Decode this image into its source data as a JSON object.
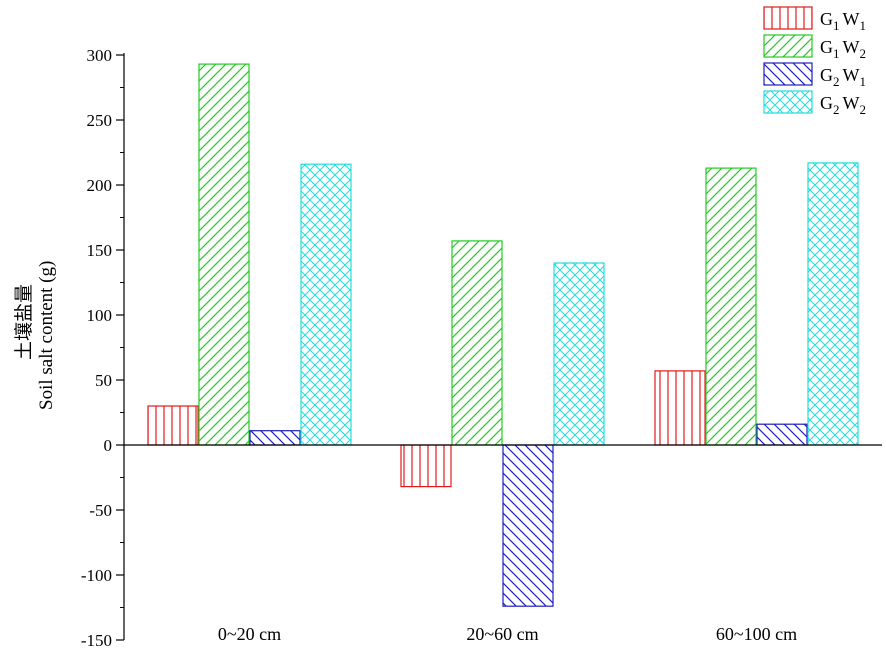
{
  "chart_data": {
    "type": "bar",
    "categories": [
      "0~20 cm",
      "20~60 cm",
      "60~100 cm"
    ],
    "series": [
      {
        "name": "G1W1",
        "name_parts": {
          "g": "G",
          "g_sub": "1",
          "w": "W",
          "w_sub": "1"
        },
        "values": [
          30,
          -32,
          57
        ],
        "color": "#e31a1c",
        "pattern": "vertical-lines"
      },
      {
        "name": "G1W2",
        "name_parts": {
          "g": "G",
          "g_sub": "1",
          "w": "W",
          "w_sub": "2"
        },
        "values": [
          293,
          157,
          213
        ],
        "color": "#22cc22",
        "pattern": "diagonal-up"
      },
      {
        "name": "G2W1",
        "name_parts": {
          "g": "G",
          "g_sub": "2",
          "w": "W",
          "w_sub": "1"
        },
        "values": [
          11,
          -124,
          16
        ],
        "color": "#1f1fbf",
        "pattern": "diagonal-down"
      },
      {
        "name": "G2W2",
        "name_parts": {
          "g": "G",
          "g_sub": "2",
          "w": "W",
          "w_sub": "2"
        },
        "values": [
          216,
          140,
          217
        ],
        "color": "#22dddd",
        "pattern": "crosshatch"
      }
    ],
    "ylabel_cn": "土壤盐量",
    "ylabel": "Soil salt content (g)",
    "xlabel": "",
    "ylim": [
      -150,
      300
    ],
    "yticks": [
      -150,
      -100,
      -50,
      0,
      50,
      100,
      150,
      200,
      250,
      300
    ],
    "ytick_labels": [
      "-150",
      "-100",
      "-50",
      "0",
      "50",
      "100",
      "150",
      "200",
      "250",
      "300"
    ],
    "grid": false,
    "legend_position": "top-right"
  }
}
